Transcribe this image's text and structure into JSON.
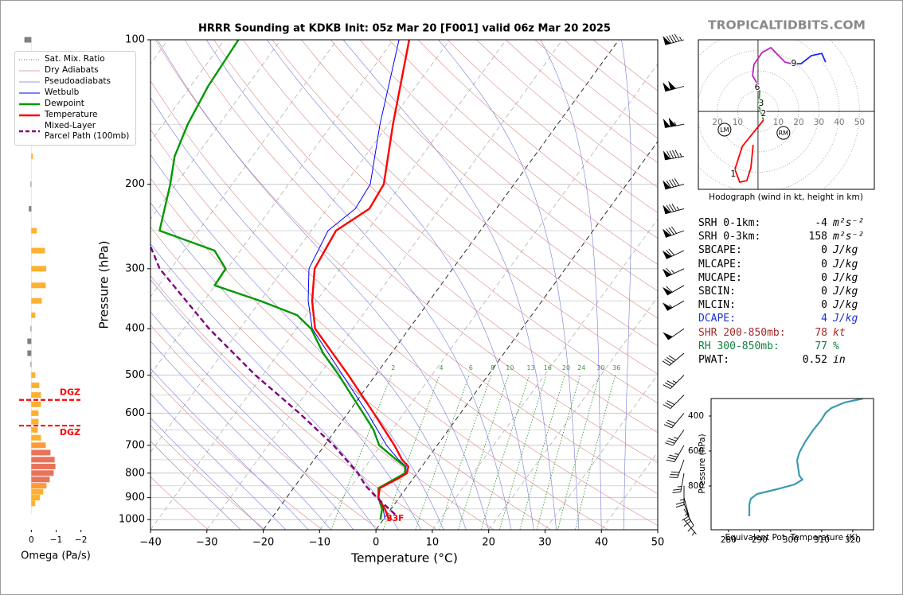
{
  "watermark": "TROPICALTIDBITS.COM",
  "chart_data": [
    {
      "type": "skewt",
      "title": "HRRR Sounding at KDKB Init: 05z Mar 20 [F001] valid 06z Mar 20 2025",
      "x_label": "Temperature (°C)",
      "y_label": "Pressure (hPa)",
      "xlim": [
        -40,
        50
      ],
      "ylim": [
        1050,
        100
      ],
      "log_y": true,
      "grid": true,
      "legend": "upper left",
      "xticks": [
        {
          "value": -40,
          "label": "−40"
        },
        {
          "value": -30,
          "label": "−30"
        },
        {
          "value": -20,
          "label": "−20"
        },
        {
          "value": -10,
          "label": "−10"
        },
        0,
        10,
        20,
        30,
        40,
        50
      ],
      "yticks": [
        100,
        200,
        300,
        400,
        500,
        600,
        700,
        800,
        900,
        1000
      ],
      "minor_yticks": [
        150,
        250,
        350,
        450,
        550,
        650,
        750,
        850,
        950
      ],
      "highlight_isotherms": [
        -20,
        0
      ],
      "reference_lines": [
        {
          "name": "Sat. Mix. Ratio",
          "color": "#3c9a3c"
        },
        {
          "name": "Dry Adiabats",
          "color": "#d98a8a"
        },
        {
          "name": "Pseudoadiabats",
          "color": "#7a7ad6"
        }
      ],
      "mixing_ratio_labels": [
        2,
        4,
        6,
        8,
        10,
        13,
        16,
        20,
        24,
        30,
        36
      ],
      "surface_label": "33F",
      "series": [
        {
          "name": "Wetbulb",
          "color": "#0000ff",
          "width": 1,
          "pressure": [
            1000,
            950,
            900,
            860,
            820,
            800,
            775,
            750,
            700,
            600,
            500,
            400,
            350,
            300,
            250,
            225,
            200,
            150,
            100
          ],
          "values": [
            0.3,
            -1.4,
            -3.7,
            -4.8,
            -2.5,
            -2.0,
            -2.8,
            -5.0,
            -9.0,
            -16.5,
            -25.8,
            -37.2,
            -41.5,
            -45.5,
            -47.0,
            -45.0,
            -45.5,
            -51.5,
            -59.0
          ]
        },
        {
          "name": "Dewpoint",
          "color": "#009900",
          "width": 2.4,
          "pressure": [
            1000,
            950,
            900,
            860,
            800,
            775,
            750,
            700,
            650,
            600,
            550,
            500,
            450,
            400,
            375,
            350,
            325,
            300,
            275,
            250,
            200,
            175,
            150,
            125,
            100
          ],
          "values": [
            -0.5,
            -1.6,
            -3.7,
            -4.9,
            -2.1,
            -3.0,
            -5.4,
            -10.3,
            -13.3,
            -17.3,
            -21.7,
            -26.5,
            -32.1,
            -37.4,
            -41.6,
            -50.0,
            -60.1,
            -60.3,
            -64.6,
            -76.9,
            -81.0,
            -83.8,
            -85.6,
            -86.9,
            -87.5
          ]
        },
        {
          "name": "Temperature",
          "color": "#ff0000",
          "width": 2.4,
          "pressure": [
            1000,
            950,
            900,
            860,
            820,
            800,
            775,
            750,
            700,
            600,
            500,
            400,
            350,
            300,
            250,
            225,
            200,
            150,
            100
          ],
          "values": [
            1.0,
            -1.1,
            -3.7,
            -4.7,
            -2.6,
            -1.8,
            -2.4,
            -4.4,
            -7.6,
            -15.4,
            -24.8,
            -36.7,
            -40.8,
            -44.5,
            -45.6,
            -42.5,
            -43.1,
            -49.2,
            -57.2
          ]
        },
        {
          "name": "Mixed-Layer\nParcel Path (100mb)",
          "color": "#800080",
          "width": 2.4,
          "dashed": true,
          "pressure": [
            975,
            900,
            850,
            800,
            700,
            600,
            500,
            400,
            300,
            260
          ],
          "values": [
            1.4,
            -4.0,
            -7.5,
            -10.5,
            -18.4,
            -28.6,
            -41.3,
            -55.5,
            -72.0,
            -78.0
          ]
        }
      ],
      "wind_barbs": {
        "pressure": [
          100,
          125,
          150,
          175,
          200,
          225,
          250,
          275,
          300,
          325,
          350,
          400,
          450,
          500,
          550,
          600,
          650,
          700,
          750,
          800,
          850,
          900,
          925,
          950,
          1000
        ],
        "speed": [
          95,
          100,
          105,
          95,
          90,
          85,
          80,
          70,
          65,
          60,
          55,
          50,
          40,
          35,
          30,
          30,
          35,
          35,
          30,
          25,
          25,
          15,
          15,
          10,
          5
        ],
        "direction": [
          255,
          255,
          260,
          260,
          255,
          255,
          250,
          245,
          245,
          240,
          240,
          235,
          230,
          225,
          225,
          220,
          215,
          210,
          200,
          190,
          180,
          165,
          160,
          150,
          140
        ]
      }
    },
    {
      "type": "hodograph",
      "title": "Hodograph (wind in kt, height in km)",
      "xlim": [
        -29.4,
        57.3
      ],
      "ylim": [
        -38.4,
        35.3
      ],
      "ring_ticks": [
        {
          "value": -20,
          "label": "20"
        },
        {
          "value": -10,
          "label": "10"
        },
        10,
        20,
        30,
        40,
        50
      ],
      "segments": [
        {
          "color": "#ff0000",
          "u": [
            -2.4,
            -3.5,
            -5.5,
            -9.0,
            -11.4,
            -7.8,
            -2.4,
            2.7
          ],
          "v": [
            -16.5,
            -27.8,
            -34.1,
            -34.9,
            -28.6,
            -17.3,
            -10.6,
            -4.3
          ]
        },
        {
          "color": "#2ca02c",
          "u": [
            2.7,
            0.4,
            0.8
          ],
          "v": [
            -4.3,
            2.7,
            9.8
          ]
        },
        {
          "color": "#c020c0",
          "u": [
            0.8,
            -0.4,
            -2.7,
            -2.0,
            2.0,
            6.3,
            13.3,
            16.5
          ],
          "v": [
            9.8,
            13.7,
            17.6,
            23.1,
            29.0,
            31.4,
            24.3,
            23.5
          ]
        },
        {
          "color": "#2020ff",
          "u": [
            16.5,
            21.2,
            26.3,
            31.4,
            33.3
          ],
          "v": [
            23.5,
            23.5,
            27.5,
            28.6,
            24.3
          ]
        }
      ],
      "height_labels": [
        {
          "label": "1",
          "u": -12.2,
          "v": -31.0
        },
        {
          "label": "2",
          "u": 2.7,
          "v": -1.2
        },
        {
          "label": "3",
          "u": 1.6,
          "v": 3.9
        },
        {
          "label": "6",
          "u": -0.4,
          "v": 11.8
        },
        {
          "label": "9",
          "u": 17.6,
          "v": 23.5
        }
      ],
      "storm_motion": [
        {
          "label": "LM",
          "u": -16.5,
          "v": -9.0
        },
        {
          "label": "RM",
          "u": 12.5,
          "v": -10.6
        }
      ]
    },
    {
      "type": "line",
      "x_label": "Equivalent Pot. Temperature (K)",
      "y_label": "Pressure (hPa)",
      "xlim": [
        274.4,
        326.7
      ],
      "ylim": [
        1050,
        300
      ],
      "xticks": [
        280,
        290,
        300,
        310,
        320
      ],
      "yticks": [
        400,
        600,
        800
      ],
      "color": "#3a9bb0",
      "x": [
        323.3,
        317.4,
        313.1,
        311.3,
        309.7,
        307.2,
        304.6,
        302.8,
        302.1,
        302.8,
        303.8,
        301.3,
        295.6,
        289.2,
        287.2,
        286.7,
        286.7
      ],
      "values": [
        300,
        322.7,
        354.5,
        381.8,
        427,
        481.8,
        550,
        609,
        654.5,
        741,
        763.6,
        791,
        818,
        845.5,
        872.7,
        904.5,
        972.7
      ]
    },
    {
      "type": "hbar",
      "x_label": "Omega (Pa/s)",
      "xlim": [
        0.3,
        -2.3
      ],
      "ylim": [
        1050,
        100
      ],
      "xticks": [
        0,
        {
          "value": -1,
          "label": "−1"
        },
        {
          "value": -2,
          "label": "−2"
        }
      ],
      "pressure": [
        100,
        150,
        175,
        200,
        225,
        250,
        275,
        300,
        325,
        350,
        375,
        400,
        425,
        450,
        475,
        500,
        525,
        550,
        575,
        600,
        625,
        650,
        675,
        700,
        725,
        750,
        775,
        800,
        825,
        850,
        875,
        900,
        925
      ],
      "values": [
        0.28,
        -0.06,
        -0.06,
        0.03,
        0.1,
        -0.22,
        -0.55,
        -0.6,
        -0.58,
        -0.42,
        -0.16,
        0.03,
        0.16,
        0.16,
        0.03,
        -0.16,
        -0.32,
        -0.39,
        -0.39,
        -0.29,
        -0.29,
        -0.26,
        -0.39,
        -0.58,
        -0.77,
        -0.94,
        -0.97,
        -0.9,
        -0.74,
        -0.61,
        -0.48,
        -0.35,
        -0.16
      ],
      "colors": [
        "#808080",
        "#fdb130",
        "#fdb130",
        "#808080",
        "#808080",
        "#fdb130",
        "#fdb130",
        "#fdb130",
        "#fdb130",
        "#fdb130",
        "#fdb130",
        "#808080",
        "#808080",
        "#808080",
        "#808080",
        "#fdb130",
        "#fdb130",
        "#fdb130",
        "#fdb130",
        "#fdb130",
        "#fdb130",
        "#fdb130",
        "#fdb130",
        "#fd9a3a",
        "#e8735a",
        "#e8735a",
        "#e8735a",
        "#e8735a",
        "#e8735a",
        "#fd9a3a",
        "#fdb130",
        "#fdb130",
        "#fdb130"
      ],
      "annotations": [
        {
          "text": "DGZ",
          "pressure": 563,
          "color": "#ff0000"
        },
        {
          "text": "DGZ",
          "pressure": 637,
          "color": "#ff0000"
        }
      ]
    }
  ],
  "parameters": {
    "rows": [
      {
        "label": "SRH 0-1km:",
        "value": -4,
        "unit": "m²s⁻²",
        "color": "#000000"
      },
      {
        "label": "SRH 0-3km:",
        "value": 158,
        "unit": "m²s⁻²",
        "color": "#000000"
      },
      {
        "label": "SBCAPE:",
        "value": 0,
        "unit": "J/kg",
        "color": "#000000"
      },
      {
        "label": "MLCAPE:",
        "value": 0,
        "unit": "J/kg",
        "color": "#000000"
      },
      {
        "label": "MUCAPE:",
        "value": 0,
        "unit": "J/kg",
        "color": "#000000"
      },
      {
        "label": "SBCIN:",
        "value": 0,
        "unit": "J/kg",
        "color": "#000000"
      },
      {
        "label": "MLCIN:",
        "value": 0,
        "unit": "J/kg",
        "color": "#000000"
      },
      {
        "label": "DCAPE:",
        "value": 4,
        "unit": "J/kg",
        "color": "#2030d0"
      },
      {
        "label": "SHR 200-850mb:",
        "value": 78,
        "unit": "kt",
        "color": "#a52a2a"
      },
      {
        "label": "RH 300-850mb:",
        "value": 77,
        "unit": "%",
        "color": "#108040"
      },
      {
        "label": "PWAT:",
        "value": 0.52,
        "unit": "in",
        "color": "#000000"
      }
    ]
  }
}
